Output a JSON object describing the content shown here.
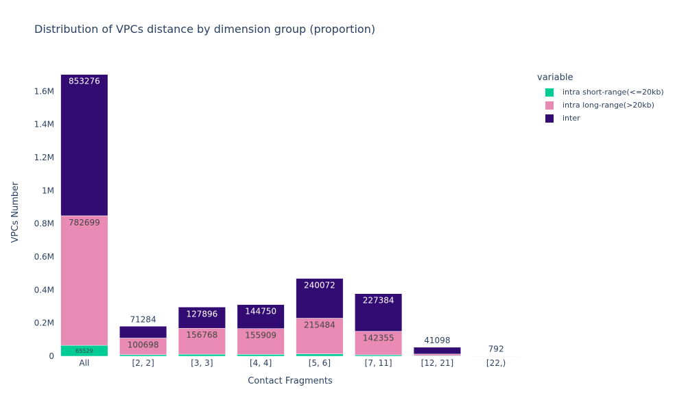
{
  "chart_data": {
    "type": "bar",
    "stacked": true,
    "title": "Distribution of VPCs distance by dimension group (proportion)",
    "xlabel": "Contact Fragments",
    "ylabel": "VPCs Number",
    "ylim": [
      0,
      1750000
    ],
    "yticks": [
      0,
      200000,
      400000,
      600000,
      800000,
      1000000,
      1200000,
      1400000,
      1600000
    ],
    "ytick_labels": [
      "0",
      "0.2M",
      "0.4M",
      "0.6M",
      "0.8M",
      "1M",
      "1.2M",
      "1.4M",
      "1.6M"
    ],
    "categories": [
      "All",
      "[2, 2]",
      "[3, 3]",
      "[4, 4]",
      "[5, 6]",
      "[7, 11]",
      "[12, 21]",
      "[22,)"
    ],
    "legend": {
      "title": "variable",
      "position": "right"
    },
    "series": [
      {
        "name": "intra short-range(<=20kb)",
        "color": "#00cc96",
        "values": [
          65529,
          9000,
          12000,
          11000,
          14000,
          8000,
          3000,
          150
        ],
        "labels": [
          "65529",
          "",
          "",
          "",
          "",
          "",
          "",
          ""
        ]
      },
      {
        "name": "intra long-range(>20kb)",
        "color": "#e88ab4",
        "values": [
          782699,
          100698,
          156768,
          155909,
          215484,
          142355,
          10000,
          500
        ],
        "labels": [
          "782699",
          "100698",
          "156768",
          "155909",
          "215484",
          "142355",
          "",
          ""
        ]
      },
      {
        "name": "inter",
        "color": "#330c73",
        "values": [
          853276,
          71284,
          127896,
          144750,
          240072,
          227384,
          41098,
          792
        ],
        "labels": [
          "853276",
          "71284",
          "127896",
          "144750",
          "240072",
          "227384",
          "41098",
          "792"
        ]
      }
    ]
  }
}
